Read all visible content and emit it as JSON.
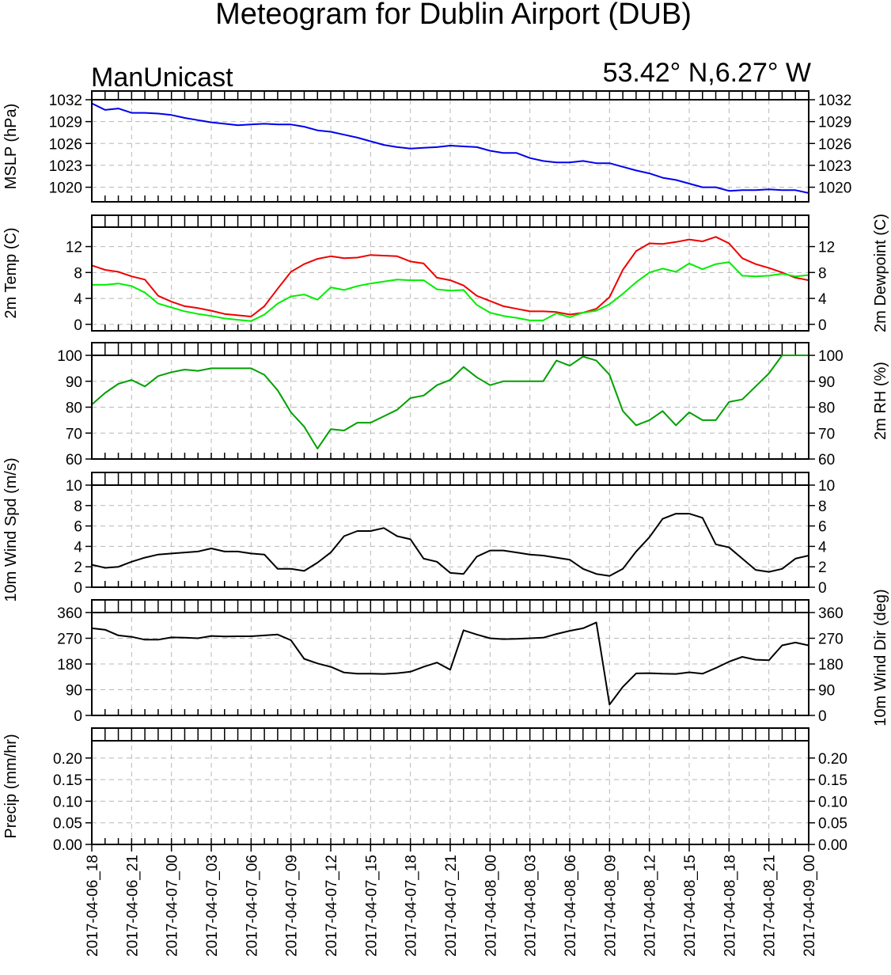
{
  "title": "Meteogram for Dublin Airport (DUB)",
  "model": "ManUnicast",
  "location": "53.42° N,6.27° W",
  "colors": {
    "pressure": "#0000ee",
    "temperature": "#ee0000",
    "dewpoint": "#00ee00",
    "rh": "#00a000",
    "wind": "#000000"
  },
  "x_tick_labels": [
    "2017-04-06_18",
    "2017-04-06_21",
    "2017-04-07_00",
    "2017-04-07_03",
    "2017-04-07_06",
    "2017-04-07_09",
    "2017-04-07_12",
    "2017-04-07_15",
    "2017-04-07_18",
    "2017-04-07_21",
    "2017-04-08_00",
    "2017-04-08_03",
    "2017-04-08_06",
    "2017-04-08_09",
    "2017-04-08_12",
    "2017-04-08_15",
    "2017-04-08_18",
    "2017-04-08_21",
    "2017-04-09_00"
  ],
  "chart_data": [
    {
      "type": "line",
      "ylabel_left": "MSLP (hPa)",
      "ylabel_right": "",
      "ylim": [
        1018,
        1032
      ],
      "yticks": [
        "1020",
        "1023",
        "1026",
        "1029",
        "1032"
      ],
      "x": [
        "2017-04-06_18",
        "2017-04-06_19",
        "2017-04-06_20",
        "2017-04-06_21",
        "2017-04-06_22",
        "2017-04-06_23",
        "2017-04-07_00",
        "2017-04-07_01",
        "2017-04-07_02",
        "2017-04-07_03",
        "2017-04-07_04",
        "2017-04-07_05",
        "2017-04-07_06",
        "2017-04-07_07",
        "2017-04-07_08",
        "2017-04-07_09",
        "2017-04-07_10",
        "2017-04-07_11",
        "2017-04-07_12",
        "2017-04-07_13",
        "2017-04-07_14",
        "2017-04-07_15",
        "2017-04-07_16",
        "2017-04-07_17",
        "2017-04-07_18",
        "2017-04-07_19",
        "2017-04-07_20",
        "2017-04-07_21",
        "2017-04-07_22",
        "2017-04-07_23",
        "2017-04-08_00",
        "2017-04-08_01",
        "2017-04-08_02",
        "2017-04-08_03",
        "2017-04-08_04",
        "2017-04-08_05",
        "2017-04-08_06",
        "2017-04-08_07",
        "2017-04-08_08",
        "2017-04-08_09",
        "2017-04-08_10",
        "2017-04-08_11",
        "2017-04-08_12",
        "2017-04-08_13",
        "2017-04-08_14",
        "2017-04-08_15",
        "2017-04-08_16",
        "2017-04-08_17",
        "2017-04-08_18",
        "2017-04-08_19",
        "2017-04-08_20",
        "2017-04-08_21",
        "2017-04-08_22",
        "2017-04-08_23",
        "2017-04-09_00"
      ],
      "series": [
        {
          "name": "",
          "color": "#0000ee",
          "values": [
            1031.5,
            1030.6,
            1030.8,
            1030.2,
            1030.2,
            1030.1,
            1029.9,
            1029.5,
            1029.2,
            1028.9,
            1028.7,
            1028.5,
            1028.6,
            1028.7,
            1028.6,
            1028.6,
            1028.3,
            1027.8,
            1027.6,
            1027.2,
            1026.8,
            1026.3,
            1025.8,
            1025.5,
            1025.3,
            1025.4,
            1025.5,
            1025.7,
            1025.6,
            1025.5,
            1025.0,
            1024.7,
            1024.7,
            1024.0,
            1023.6,
            1023.4,
            1023.4,
            1023.6,
            1023.3,
            1023.3,
            1022.8,
            1022.3,
            1021.9,
            1021.3,
            1021.0,
            1020.5,
            1020.0,
            1020.0,
            1019.5,
            1019.6,
            1019.6,
            1019.7,
            1019.6,
            1019.6,
            1019.2
          ]
        }
      ]
    },
    {
      "type": "line",
      "ylabel_left": "2m Temp (C)",
      "ylabel_right": "2m Dewpoint (C)",
      "ylim": [
        -1,
        15
      ],
      "yticks": [
        "0",
        "4",
        "8",
        "12"
      ],
      "x": [
        "2017-04-06_18",
        "2017-04-06_19",
        "2017-04-06_20",
        "2017-04-06_21",
        "2017-04-06_22",
        "2017-04-06_23",
        "2017-04-07_00",
        "2017-04-07_01",
        "2017-04-07_02",
        "2017-04-07_03",
        "2017-04-07_04",
        "2017-04-07_05",
        "2017-04-07_06",
        "2017-04-07_07",
        "2017-04-07_08",
        "2017-04-07_09",
        "2017-04-07_10",
        "2017-04-07_11",
        "2017-04-07_12",
        "2017-04-07_13",
        "2017-04-07_14",
        "2017-04-07_15",
        "2017-04-07_16",
        "2017-04-07_17",
        "2017-04-07_18",
        "2017-04-07_19",
        "2017-04-07_20",
        "2017-04-07_21",
        "2017-04-07_22",
        "2017-04-07_23",
        "2017-04-08_00",
        "2017-04-08_01",
        "2017-04-08_02",
        "2017-04-08_03",
        "2017-04-08_04",
        "2017-04-08_05",
        "2017-04-08_06",
        "2017-04-08_07",
        "2017-04-08_08",
        "2017-04-08_09",
        "2017-04-08_10",
        "2017-04-08_11",
        "2017-04-08_12",
        "2017-04-08_13",
        "2017-04-08_14",
        "2017-04-08_15",
        "2017-04-08_16",
        "2017-04-08_17",
        "2017-04-08_18",
        "2017-04-08_19",
        "2017-04-08_20",
        "2017-04-08_21",
        "2017-04-08_22",
        "2017-04-08_23",
        "2017-04-09_00"
      ],
      "series": [
        {
          "name": "2m Temp (C)",
          "color": "#ee0000",
          "values": [
            9.1,
            8.4,
            8.1,
            7.4,
            6.9,
            4.4,
            3.5,
            2.8,
            2.5,
            2.1,
            1.6,
            1.4,
            1.2,
            2.8,
            5.5,
            8.1,
            9.3,
            10.1,
            10.5,
            10.2,
            10.3,
            10.7,
            10.6,
            10.5,
            9.7,
            9.4,
            7.2,
            6.8,
            6.0,
            4.4,
            3.6,
            2.8,
            2.4,
            2.0,
            2.0,
            1.9,
            1.5,
            1.8,
            2.4,
            4.2,
            8.4,
            11.3,
            12.5,
            12.4,
            12.7,
            13.1,
            12.8,
            13.5,
            12.5,
            10.2,
            9.3,
            8.7,
            8.0,
            7.2,
            6.8
          ]
        },
        {
          "name": "2m Dewpoint (C)",
          "color": "#00ee00",
          "values": [
            6.1,
            6.1,
            6.3,
            5.9,
            4.9,
            3.2,
            2.6,
            2.0,
            1.6,
            1.3,
            0.9,
            0.7,
            0.5,
            1.5,
            3.2,
            4.3,
            4.6,
            3.8,
            5.7,
            5.3,
            5.9,
            6.3,
            6.6,
            6.9,
            6.8,
            6.8,
            5.4,
            5.2,
            5.3,
            3.0,
            1.8,
            1.3,
            1.0,
            0.6,
            0.6,
            1.7,
            1.1,
            1.8,
            2.1,
            3.1,
            4.7,
            6.5,
            8.0,
            8.6,
            8.1,
            9.4,
            8.5,
            9.3,
            9.6,
            7.5,
            7.4,
            7.5,
            7.8,
            7.4,
            7.6
          ]
        }
      ]
    },
    {
      "type": "line",
      "ylabel_left": "",
      "ylabel_right": "2m RH (%)",
      "ylim": [
        60,
        100
      ],
      "yticks": [
        "60",
        "70",
        "80",
        "90",
        "100"
      ],
      "x": [
        "2017-04-06_18",
        "2017-04-06_19",
        "2017-04-06_20",
        "2017-04-06_21",
        "2017-04-06_22",
        "2017-04-06_23",
        "2017-04-07_00",
        "2017-04-07_01",
        "2017-04-07_02",
        "2017-04-07_03",
        "2017-04-07_04",
        "2017-04-07_05",
        "2017-04-07_06",
        "2017-04-07_07",
        "2017-04-07_08",
        "2017-04-07_09",
        "2017-04-07_10",
        "2017-04-07_11",
        "2017-04-07_12",
        "2017-04-07_13",
        "2017-04-07_14",
        "2017-04-07_15",
        "2017-04-07_16",
        "2017-04-07_17",
        "2017-04-07_18",
        "2017-04-07_19",
        "2017-04-07_20",
        "2017-04-07_21",
        "2017-04-07_22",
        "2017-04-07_23",
        "2017-04-08_00",
        "2017-04-08_01",
        "2017-04-08_02",
        "2017-04-08_03",
        "2017-04-08_04",
        "2017-04-08_05",
        "2017-04-08_06",
        "2017-04-08_07",
        "2017-04-08_08",
        "2017-04-08_09",
        "2017-04-08_10",
        "2017-04-08_11",
        "2017-04-08_12",
        "2017-04-08_13",
        "2017-04-08_14",
        "2017-04-08_15",
        "2017-04-08_16",
        "2017-04-08_17",
        "2017-04-08_18",
        "2017-04-08_19",
        "2017-04-08_20",
        "2017-04-08_21",
        "2017-04-08_22",
        "2017-04-08_23",
        "2017-04-09_00"
      ],
      "series": [
        {
          "name": "2m RH (%)",
          "color": "#00a000",
          "values": [
            81,
            85.5,
            89,
            90.5,
            88,
            92,
            93.5,
            94.5,
            94,
            95,
            95,
            95,
            95,
            92.5,
            86.5,
            78,
            72.5,
            64,
            71.5,
            71,
            74,
            74,
            76.5,
            79,
            83.5,
            84.5,
            88.5,
            90.5,
            95.5,
            91.5,
            88.5,
            90,
            90,
            90,
            90,
            98,
            96,
            99.5,
            98,
            92.5,
            78.5,
            73,
            75,
            78.5,
            73,
            78,
            75,
            75,
            82,
            83,
            88,
            93,
            100,
            100,
            100
          ]
        }
      ]
    },
    {
      "type": "line",
      "ylabel_left": "10m Wind Spd (m/s)",
      "ylabel_right": "",
      "ylim": [
        0,
        10
      ],
      "yticks": [
        "0",
        "2",
        "4",
        "6",
        "8",
        "10"
      ],
      "x": [
        "2017-04-06_18",
        "2017-04-06_19",
        "2017-04-06_20",
        "2017-04-06_21",
        "2017-04-06_22",
        "2017-04-06_23",
        "2017-04-07_00",
        "2017-04-07_01",
        "2017-04-07_02",
        "2017-04-07_03",
        "2017-04-07_04",
        "2017-04-07_05",
        "2017-04-07_06",
        "2017-04-07_07",
        "2017-04-07_08",
        "2017-04-07_09",
        "2017-04-07_10",
        "2017-04-07_11",
        "2017-04-07_12",
        "2017-04-07_13",
        "2017-04-07_14",
        "2017-04-07_15",
        "2017-04-07_16",
        "2017-04-07_17",
        "2017-04-07_18",
        "2017-04-07_19",
        "2017-04-07_20",
        "2017-04-07_21",
        "2017-04-07_22",
        "2017-04-07_23",
        "2017-04-08_00",
        "2017-04-08_01",
        "2017-04-08_02",
        "2017-04-08_03",
        "2017-04-08_04",
        "2017-04-08_05",
        "2017-04-08_06",
        "2017-04-08_07",
        "2017-04-08_08",
        "2017-04-08_09",
        "2017-04-08_10",
        "2017-04-08_11",
        "2017-04-08_12",
        "2017-04-08_13",
        "2017-04-08_14",
        "2017-04-08_15",
        "2017-04-08_16",
        "2017-04-08_17",
        "2017-04-08_18",
        "2017-04-08_19",
        "2017-04-08_20",
        "2017-04-08_21",
        "2017-04-08_22",
        "2017-04-08_23",
        "2017-04-09_00"
      ],
      "series": [
        {
          "name": "",
          "color": "#000000",
          "values": [
            2.2,
            1.9,
            2.0,
            2.5,
            2.9,
            3.2,
            3.3,
            3.4,
            3.5,
            3.8,
            3.5,
            3.5,
            3.3,
            3.2,
            1.8,
            1.8,
            1.6,
            2.4,
            3.4,
            5.0,
            5.5,
            5.5,
            5.8,
            5.0,
            4.7,
            2.8,
            2.5,
            1.4,
            1.3,
            3.0,
            3.6,
            3.6,
            3.4,
            3.2,
            3.1,
            2.9,
            2.7,
            1.8,
            1.3,
            1.1,
            1.8,
            3.5,
            4.9,
            6.7,
            7.2,
            7.2,
            6.8,
            4.2,
            3.9,
            2.8,
            1.7,
            1.5,
            1.8,
            2.8,
            3.1
          ]
        }
      ]
    },
    {
      "type": "line",
      "ylabel_left": "",
      "ylabel_right": "10m Wind Dir (deg)",
      "ylim": [
        0,
        360
      ],
      "yticks": [
        "0",
        "90",
        "180",
        "270",
        "360"
      ],
      "x": [
        "2017-04-06_18",
        "2017-04-06_19",
        "2017-04-06_20",
        "2017-04-06_21",
        "2017-04-06_22",
        "2017-04-06_23",
        "2017-04-07_00",
        "2017-04-07_01",
        "2017-04-07_02",
        "2017-04-07_03",
        "2017-04-07_04",
        "2017-04-07_05",
        "2017-04-07_06",
        "2017-04-07_07",
        "2017-04-07_08",
        "2017-04-07_09",
        "2017-04-07_10",
        "2017-04-07_11",
        "2017-04-07_12",
        "2017-04-07_13",
        "2017-04-07_14",
        "2017-04-07_15",
        "2017-04-07_16",
        "2017-04-07_17",
        "2017-04-07_18",
        "2017-04-07_19",
        "2017-04-07_20",
        "2017-04-07_21",
        "2017-04-07_22",
        "2017-04-07_23",
        "2017-04-08_00",
        "2017-04-08_01",
        "2017-04-08_02",
        "2017-04-08_03",
        "2017-04-08_04",
        "2017-04-08_05",
        "2017-04-08_06",
        "2017-04-08_07",
        "2017-04-08_08",
        "2017-04-08_09",
        "2017-04-08_10",
        "2017-04-08_11",
        "2017-04-08_12",
        "2017-04-08_13",
        "2017-04-08_14",
        "2017-04-08_15",
        "2017-04-08_16",
        "2017-04-08_17",
        "2017-04-08_18",
        "2017-04-08_19",
        "2017-04-08_20",
        "2017-04-08_21",
        "2017-04-08_22",
        "2017-04-08_23",
        "2017-04-09_00"
      ],
      "series": [
        {
          "name": "",
          "color": "#000000",
          "values": [
            305,
            300,
            280,
            275,
            265,
            265,
            273,
            272,
            270,
            278,
            276,
            277,
            277,
            280,
            283,
            263,
            198,
            182,
            170,
            150,
            146,
            146,
            145,
            148,
            153,
            170,
            185,
            160,
            298,
            283,
            270,
            267,
            268,
            270,
            272,
            285,
            296,
            305,
            325,
            38,
            100,
            147,
            148,
            146,
            145,
            151,
            146,
            166,
            188,
            205,
            195,
            193,
            245,
            255,
            245
          ]
        }
      ]
    },
    {
      "type": "line",
      "ylabel_left": "Precip (mm/hr)",
      "ylabel_right": "",
      "ylim": [
        0,
        0.24
      ],
      "yticks": [
        "0.00",
        "0.05",
        "0.10",
        "0.15",
        "0.20"
      ],
      "x": [],
      "series": []
    }
  ]
}
